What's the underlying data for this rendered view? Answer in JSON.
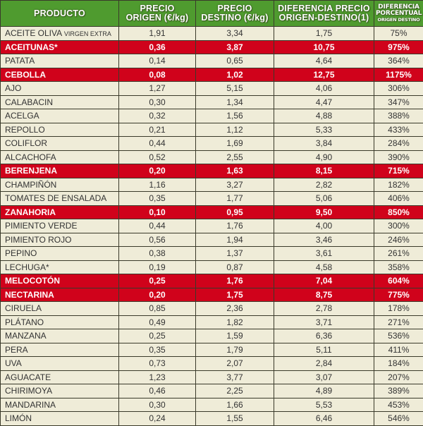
{
  "table": {
    "headers": {
      "producto": "PRODUCTO",
      "precio_origen_1": "PRECIO",
      "precio_origen_2": "ORIGEN (€/kg)",
      "precio_destino_1": "PRECIO",
      "precio_destino_2": "DESTINO (€/kg)",
      "diferencia_1": "DIFERENCIA PRECIO",
      "diferencia_2": "ORIGEN-DESTINO(1)",
      "porcentual_1": "DIFERENCIA",
      "porcentual_2": "PORCENTUAL",
      "porcentual_3": "ORIGEN DESTINO"
    },
    "colors": {
      "header_bg": "#4f9b2f",
      "highlight_bg": "#d0021b",
      "row_bg": "#efecd8"
    },
    "rows": [
      {
        "producto": "ACEITE OLIVA",
        "producto_small": "VIRGEN EXTRA",
        "origen": "1,91",
        "destino": "3,34",
        "diferencia": "1,75",
        "porcentual": "75%",
        "highlight": false
      },
      {
        "producto": "ACEITUNAS*",
        "origen": "0,36",
        "destino": "3,87",
        "diferencia": "10,75",
        "porcentual": "975%",
        "highlight": true
      },
      {
        "producto": "PATATA",
        "origen": "0,14",
        "destino": "0,65",
        "diferencia": "4,64",
        "porcentual": "364%",
        "highlight": false
      },
      {
        "producto": "CEBOLLA",
        "origen": "0,08",
        "destino": "1,02",
        "diferencia": "12,75",
        "porcentual": "1175%",
        "highlight": true
      },
      {
        "producto": "AJO",
        "origen": "1,27",
        "destino": "5,15",
        "diferencia": "4,06",
        "porcentual": "306%",
        "highlight": false
      },
      {
        "producto": "CALABACIN",
        "origen": "0,30",
        "destino": "1,34",
        "diferencia": "4,47",
        "porcentual": "347%",
        "highlight": false
      },
      {
        "producto": "ACELGA",
        "origen": "0,32",
        "destino": "1,56",
        "diferencia": "4,88",
        "porcentual": "388%",
        "highlight": false
      },
      {
        "producto": "REPOLLO",
        "origen": "0,21",
        "destino": "1,12",
        "diferencia": "5,33",
        "porcentual": "433%",
        "highlight": false
      },
      {
        "producto": "COLIFLOR",
        "origen": "0,44",
        "destino": "1,69",
        "diferencia": "3,84",
        "porcentual": "284%",
        "highlight": false
      },
      {
        "producto": "ALCACHOFA",
        "origen": "0,52",
        "destino": "2,55",
        "diferencia": "4,90",
        "porcentual": "390%",
        "highlight": false
      },
      {
        "producto": "BERENJENA",
        "origen": "0,20",
        "destino": "1,63",
        "diferencia": "8,15",
        "porcentual": "715%",
        "highlight": true
      },
      {
        "producto": "CHAMPIÑÓN",
        "origen": "1,16",
        "destino": "3,27",
        "diferencia": "2,82",
        "porcentual": "182%",
        "highlight": false
      },
      {
        "producto": "TOMATES DE ENSALADA",
        "origen": "0,35",
        "destino": "1,77",
        "diferencia": "5,06",
        "porcentual": "406%",
        "highlight": false
      },
      {
        "producto": "ZANAHORIA",
        "origen": "0,10",
        "destino": "0,95",
        "diferencia": "9,50",
        "porcentual": "850%",
        "highlight": true
      },
      {
        "producto": "PIMIENTO VERDE",
        "origen": "0,44",
        "destino": "1,76",
        "diferencia": "4,00",
        "porcentual": "300%",
        "highlight": false
      },
      {
        "producto": "PIMIENTO ROJO",
        "origen": "0,56",
        "destino": "1,94",
        "diferencia": "3,46",
        "porcentual": "246%",
        "highlight": false
      },
      {
        "producto": "PEPINO",
        "origen": "0,38",
        "destino": "1,37",
        "diferencia": "3,61",
        "porcentual": "261%",
        "highlight": false
      },
      {
        "producto": "LECHUGA*",
        "origen": "0,19",
        "destino": "0,87",
        "diferencia": "4,58",
        "porcentual": "358%",
        "highlight": false
      },
      {
        "producto": "MELOCOTÓN",
        "origen": "0,25",
        "destino": "1,76",
        "diferencia": "7,04",
        "porcentual": "604%",
        "highlight": true
      },
      {
        "producto": "NECTARINA",
        "origen": "0,20",
        "destino": "1,75",
        "diferencia": "8,75",
        "porcentual": "775%",
        "highlight": true
      },
      {
        "producto": "CIRUELA",
        "origen": "0,85",
        "destino": "2,36",
        "diferencia": "2,78",
        "porcentual": "178%",
        "highlight": false
      },
      {
        "producto": "PLÁTANO",
        "origen": "0,49",
        "destino": "1,82",
        "diferencia": "3,71",
        "porcentual": "271%",
        "highlight": false
      },
      {
        "producto": "MANZANA",
        "origen": "0,25",
        "destino": "1,59",
        "diferencia": "6,36",
        "porcentual": "536%",
        "highlight": false
      },
      {
        "producto": "PERA",
        "origen": "0,35",
        "destino": "1,79",
        "diferencia": "5,11",
        "porcentual": "411%",
        "highlight": false
      },
      {
        "producto": "UVA",
        "origen": "0,73",
        "destino": "2,07",
        "diferencia": "2,84",
        "porcentual": "184%",
        "highlight": false
      },
      {
        "producto": "AGUACATE",
        "origen": "1,23",
        "destino": "3,77",
        "diferencia": "3,07",
        "porcentual": "207%",
        "highlight": false
      },
      {
        "producto": "CHIRIMOYA",
        "origen": "0,46",
        "destino": "2,25",
        "diferencia": "4,89",
        "porcentual": "389%",
        "highlight": false
      },
      {
        "producto": "MANDARINA",
        "origen": "0,30",
        "destino": "1,66",
        "diferencia": "5,53",
        "porcentual": "453%",
        "highlight": false
      },
      {
        "producto": "LIMÓN",
        "origen": "0,24",
        "destino": "1,55",
        "diferencia": "6,46",
        "porcentual": "546%",
        "highlight": false
      }
    ]
  }
}
